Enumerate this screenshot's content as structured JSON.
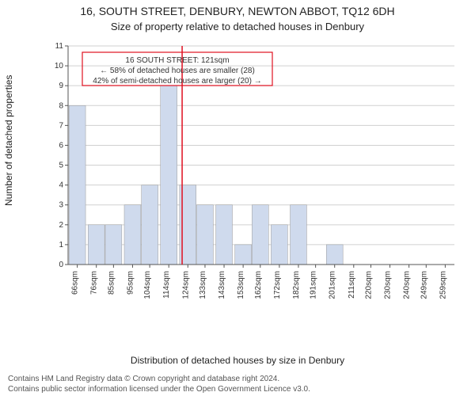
{
  "header": {
    "title": "16, SOUTH STREET, DENBURY, NEWTON ABBOT, TQ12 6DH",
    "subtitle": "Size of property relative to detached houses in Denbury"
  },
  "axes": {
    "ylabel": "Number of detached properties",
    "xlabel": "Distribution of detached houses by size in Denbury"
  },
  "chart": {
    "type": "histogram",
    "background_color": "#ffffff",
    "grid_color": "#d0d0d0",
    "axis_color": "#555555",
    "bar_color": "#cfdaed",
    "bar_stroke": "#a9b7d2",
    "refline_color": "#e01020",
    "refline_x_value": 121,
    "annotation_box_border": "#e01020",
    "font_size_labels": 12,
    "font_size_ticks": 10,
    "font_size_annot": 10,
    "ymin": 0,
    "ymax": 11,
    "y_ticks": [
      0,
      1,
      2,
      3,
      4,
      5,
      6,
      7,
      8,
      9,
      10,
      11
    ],
    "x_ticks": [
      66,
      76,
      85,
      95,
      104,
      114,
      124,
      133,
      143,
      153,
      162,
      172,
      182,
      191,
      201,
      211,
      220,
      230,
      240,
      249,
      259
    ],
    "x_tick_suffix": "sqm",
    "bar_width_ratio": 0.9,
    "bars": [
      {
        "x_center": 66,
        "count": 8
      },
      {
        "x_center": 76,
        "count": 2
      },
      {
        "x_center": 85,
        "count": 2
      },
      {
        "x_center": 95,
        "count": 3
      },
      {
        "x_center": 104,
        "count": 4
      },
      {
        "x_center": 114,
        "count": 9
      },
      {
        "x_center": 124,
        "count": 4
      },
      {
        "x_center": 133,
        "count": 3
      },
      {
        "x_center": 143,
        "count": 3
      },
      {
        "x_center": 153,
        "count": 1
      },
      {
        "x_center": 162,
        "count": 3
      },
      {
        "x_center": 172,
        "count": 2
      },
      {
        "x_center": 182,
        "count": 3
      },
      {
        "x_center": 191,
        "count": 0
      },
      {
        "x_center": 201,
        "count": 1
      },
      {
        "x_center": 211,
        "count": 0
      },
      {
        "x_center": 220,
        "count": 0
      },
      {
        "x_center": 230,
        "count": 0
      },
      {
        "x_center": 240,
        "count": 0
      },
      {
        "x_center": 249,
        "count": 0
      },
      {
        "x_center": 259,
        "count": 0
      }
    ]
  },
  "annotation": {
    "line1": "16 SOUTH STREET: 121sqm",
    "line2": "← 58% of detached houses are smaller (28)",
    "line3": "42% of semi-detached houses are larger (20) →"
  },
  "attribution": {
    "line1": "Contains HM Land Registry data © Crown copyright and database right 2024.",
    "line2": "Contains public sector information licensed under the Open Government Licence v3.0."
  }
}
